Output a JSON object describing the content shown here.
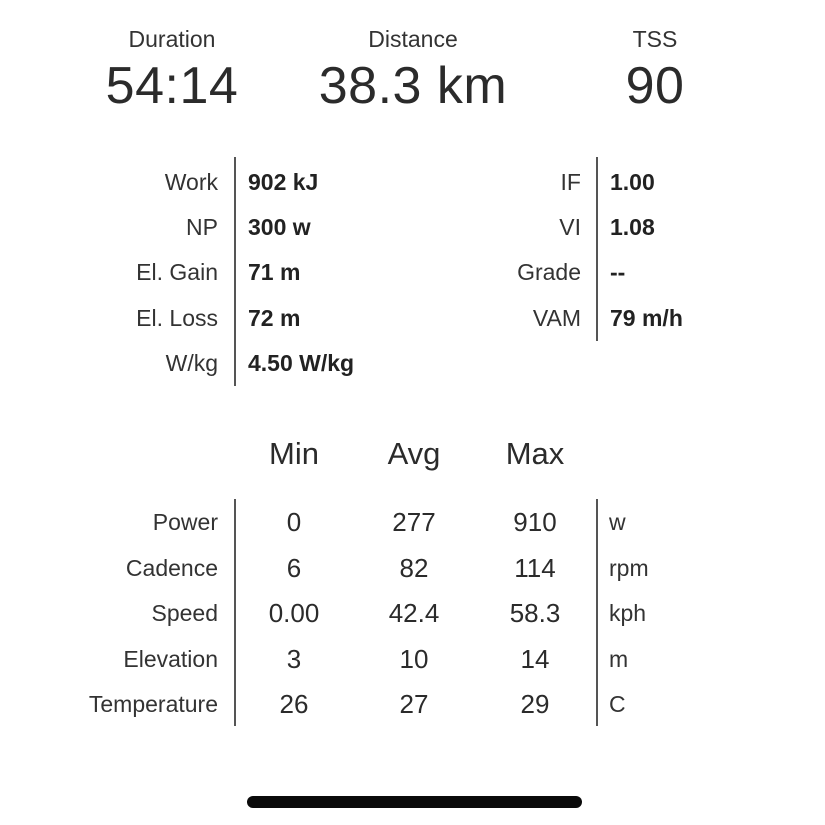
{
  "summary": {
    "duration": {
      "label": "Duration",
      "value": "54:14"
    },
    "distance": {
      "label": "Distance",
      "value": "38.3 km"
    },
    "tss": {
      "label": "TSS",
      "value": "90"
    }
  },
  "metrics": {
    "left": [
      {
        "label": "Work",
        "value": "902 kJ"
      },
      {
        "label": "NP",
        "value": "300 w"
      },
      {
        "label": "El. Gain",
        "value": "71 m"
      },
      {
        "label": "El. Loss",
        "value": "72 m"
      },
      {
        "label": "W/kg",
        "value": "4.50 W/kg"
      }
    ],
    "right": [
      {
        "label": "IF",
        "value": "1.00"
      },
      {
        "label": "VI",
        "value": "1.08"
      },
      {
        "label": "Grade",
        "value": "--"
      },
      {
        "label": "VAM",
        "value": "79 m/h"
      }
    ]
  },
  "stats": {
    "headers": {
      "min": "Min",
      "avg": "Avg",
      "max": "Max"
    },
    "rows": [
      {
        "label": "Power",
        "min": "0",
        "avg": "277",
        "max": "910",
        "unit": "w"
      },
      {
        "label": "Cadence",
        "min": "6",
        "avg": "82",
        "max": "114",
        "unit": "rpm"
      },
      {
        "label": "Speed",
        "min": "0.00",
        "avg": "42.4",
        "max": "58.3",
        "unit": "kph"
      },
      {
        "label": "Elevation",
        "min": "3",
        "avg": "10",
        "max": "14",
        "unit": "m"
      },
      {
        "label": "Temperature",
        "min": "26",
        "avg": "27",
        "max": "29",
        "unit": "C"
      }
    ]
  }
}
